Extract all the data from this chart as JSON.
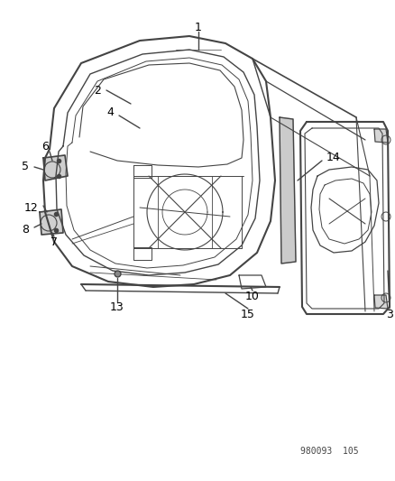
{
  "bg_color": "#ffffff",
  "dc": "#444444",
  "lc": "#000000",
  "watermark": "980093  105",
  "figsize": [
    4.39,
    5.33
  ],
  "dpi": 100
}
